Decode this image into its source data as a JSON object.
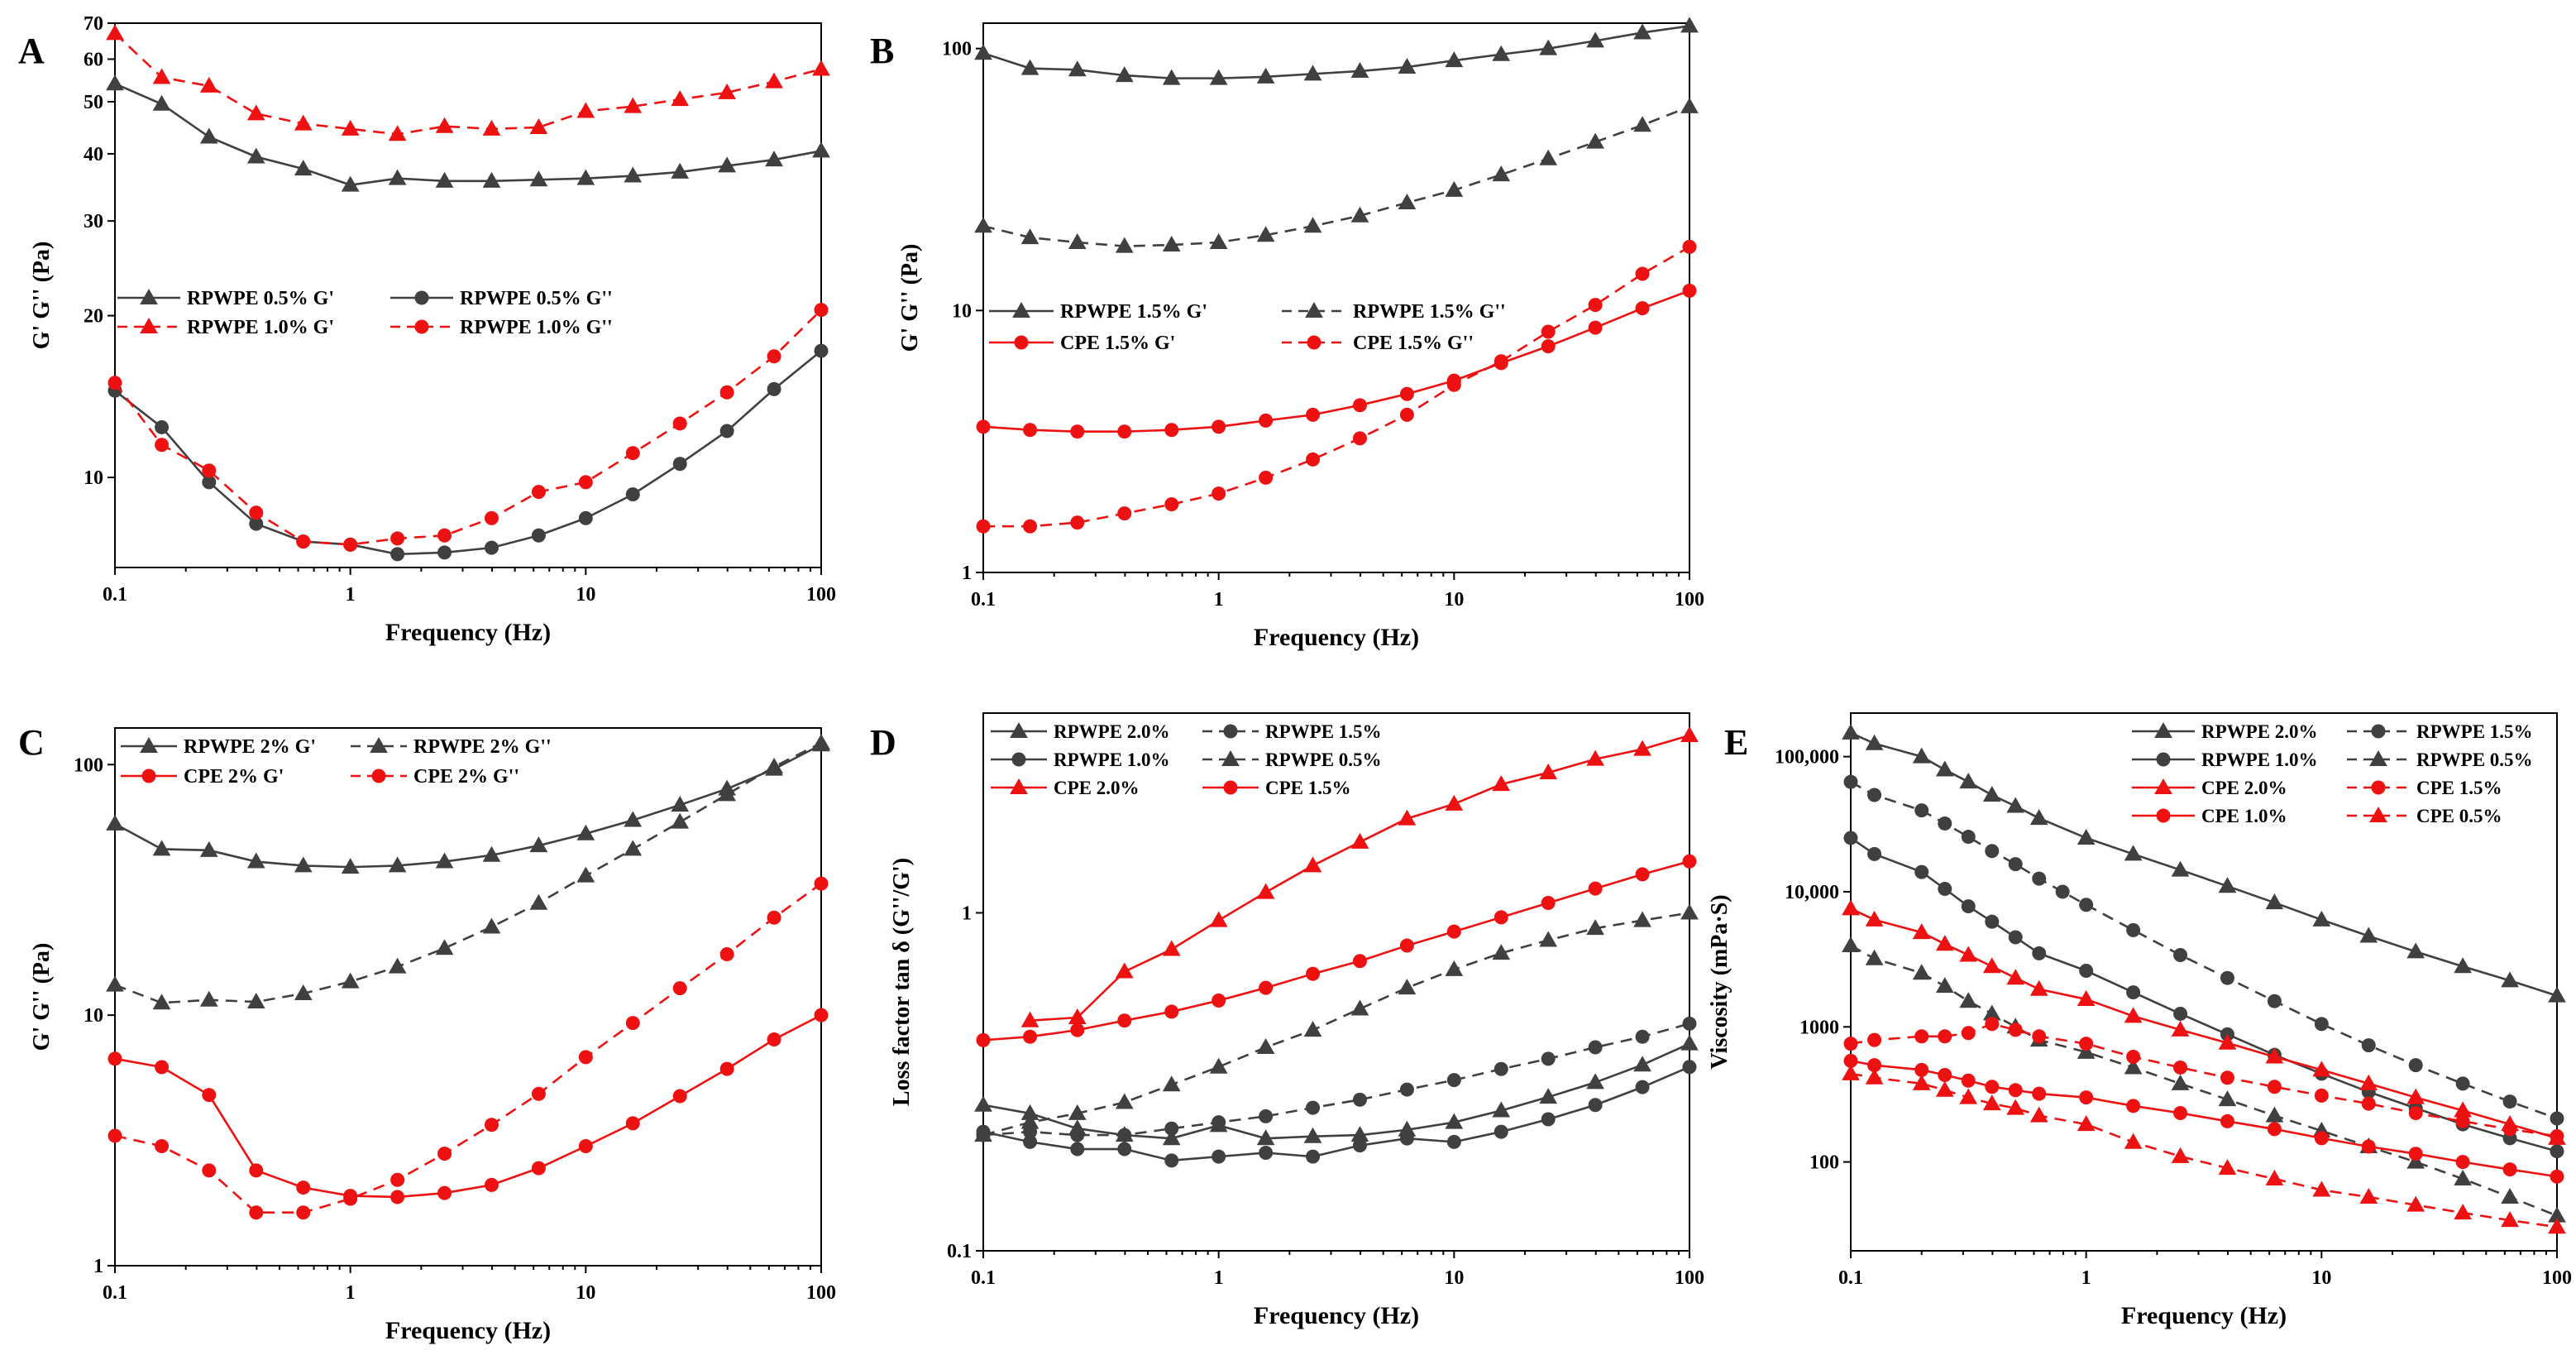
{
  "colors": {
    "dark": "#404040",
    "red": "#ee1111",
    "axis": "#000000"
  },
  "chart_data": [
    {
      "type": "line",
      "panel": "A",
      "xlabel": "Frequency (Hz)",
      "ylabel": "G' G'' (Pa)",
      "xscale": "log",
      "yscale": "log",
      "xlim": [
        0.1,
        100
      ],
      "ylim": [
        6.8,
        70
      ],
      "xticks": [
        0.1,
        1,
        10,
        100
      ],
      "xtick_labels": [
        "0.1",
        "1",
        "10",
        "100"
      ],
      "yticks": [
        10,
        20,
        30,
        40,
        50,
        60,
        70
      ],
      "ytick_labels": [
        "10",
        "20",
        "30",
        "40",
        "50",
        "60",
        "70"
      ],
      "legend_position": "center-left",
      "legend_columns": 2,
      "x": [
        0.1,
        0.158,
        0.251,
        0.398,
        0.631,
        1,
        1.585,
        2.512,
        3.981,
        6.31,
        10,
        15.85,
        25.12,
        39.81,
        63.1,
        100
      ],
      "series": [
        {
          "name": "RPWPE 0.5% G'",
          "color": "dark",
          "marker": "triangle",
          "dashed": false,
          "values": [
            54,
            49.5,
            43,
            39.5,
            37.5,
            35,
            36,
            35.6,
            35.6,
            35.8,
            36,
            36.4,
            37,
            38,
            39,
            40.5
          ]
        },
        {
          "name": "RPWPE 0.5% G''",
          "color": "dark",
          "marker": "circle",
          "dashed": false,
          "values": [
            14.5,
            12.4,
            9.8,
            8.2,
            7.6,
            7.5,
            7.2,
            7.25,
            7.4,
            7.8,
            8.4,
            9.3,
            10.6,
            12.2,
            14.6,
            17.2
          ]
        },
        {
          "name": "RPWPE 1.0% G'",
          "color": "red",
          "marker": "triangle",
          "dashed": true,
          "values": [
            67,
            55.5,
            53.5,
            47.5,
            45.5,
            44.5,
            43.5,
            45,
            44.5,
            44.8,
            48,
            49,
            50.5,
            52,
            54.5,
            57.5
          ]
        },
        {
          "name": "RPWPE 1.0% G''",
          "color": "red",
          "marker": "circle",
          "dashed": true,
          "values": [
            15,
            11.5,
            10.3,
            8.6,
            7.6,
            7.5,
            7.7,
            7.8,
            8.4,
            9.4,
            9.8,
            11.1,
            12.6,
            14.4,
            16.8,
            20.5
          ]
        }
      ]
    },
    {
      "type": "line",
      "panel": "B",
      "xlabel": "Frequency (Hz)",
      "ylabel": "G' G'' (Pa)",
      "xscale": "log",
      "yscale": "log",
      "xlim": [
        0.1,
        100
      ],
      "ylim": [
        1,
        125
      ],
      "xticks": [
        0.1,
        1,
        10,
        100
      ],
      "xtick_labels": [
        "0.1",
        "1",
        "10",
        "100"
      ],
      "yticks": [
        1,
        10,
        100
      ],
      "ytick_labels": [
        "1",
        "10",
        "100"
      ],
      "legend_position": "center-left",
      "legend_columns": 2,
      "x": [
        0.1,
        0.158,
        0.251,
        0.398,
        0.631,
        1,
        1.585,
        2.512,
        3.981,
        6.31,
        10,
        15.85,
        25.12,
        39.81,
        63.1,
        100
      ],
      "series": [
        {
          "name": "RPWPE 1.5% G'",
          "color": "dark",
          "marker": "triangle",
          "dashed": false,
          "values": [
            96,
            84,
            83,
            79,
            77,
            77,
            78,
            80,
            82,
            85,
            90,
            95,
            100,
            107,
            115,
            122
          ]
        },
        {
          "name": "RPWPE 1.5% G''",
          "color": "dark",
          "marker": "triangle",
          "dashed": true,
          "values": [
            21,
            19,
            18.2,
            17.6,
            17.8,
            18.2,
            19.4,
            21,
            23,
            25.8,
            28.8,
            33,
            38,
            44,
            51,
            60
          ]
        },
        {
          "name": "CPE 1.5% G'",
          "color": "red",
          "marker": "circle",
          "dashed": false,
          "values": [
            3.6,
            3.5,
            3.45,
            3.45,
            3.5,
            3.6,
            3.8,
            4.0,
            4.35,
            4.8,
            5.4,
            6.3,
            7.3,
            8.6,
            10.2,
            11.9
          ]
        },
        {
          "name": "CPE 1.5% G''",
          "color": "red",
          "marker": "circle",
          "dashed": true,
          "values": [
            1.5,
            1.5,
            1.55,
            1.68,
            1.82,
            2.0,
            2.3,
            2.7,
            3.25,
            4.0,
            5.2,
            6.4,
            8.3,
            10.5,
            13.8,
            17.5
          ]
        }
      ]
    },
    {
      "type": "line",
      "panel": "C",
      "xlabel": "Frequency (Hz)",
      "ylabel": "G' G'' (Pa)",
      "xscale": "log",
      "yscale": "log",
      "xlim": [
        0.1,
        100
      ],
      "ylim": [
        1,
        140
      ],
      "xticks": [
        0.1,
        1,
        10,
        100
      ],
      "xtick_labels": [
        "0.1",
        "1",
        "10",
        "100"
      ],
      "yticks": [
        1,
        10,
        100
      ],
      "ytick_labels": [
        "1",
        "10",
        "100"
      ],
      "legend_position": "top",
      "legend_columns": 2,
      "x": [
        0.1,
        0.158,
        0.251,
        0.398,
        0.631,
        1,
        1.585,
        2.512,
        3.981,
        6.31,
        10,
        15.85,
        25.12,
        39.81,
        63.1,
        100
      ],
      "series": [
        {
          "name": "RPWPE 2% G'",
          "color": "dark",
          "marker": "triangle",
          "dashed": false,
          "values": [
            58,
            46,
            45.5,
            41,
            39.5,
            39,
            39.5,
            41,
            43.5,
            47.5,
            53,
            60,
            69,
            80,
            96,
            120
          ]
        },
        {
          "name": "RPWPE 2% G''",
          "color": "dark",
          "marker": "triangle",
          "dashed": true,
          "values": [
            13.2,
            11.2,
            11.5,
            11.3,
            12.2,
            13.6,
            15.6,
            18.5,
            22.5,
            28,
            36,
            46,
            59,
            76,
            98,
            122
          ]
        },
        {
          "name": "CPE 2% G'",
          "color": "red",
          "marker": "circle",
          "dashed": false,
          "values": [
            6.7,
            6.2,
            4.8,
            2.4,
            2.05,
            1.9,
            1.88,
            1.95,
            2.1,
            2.45,
            3.0,
            3.7,
            4.75,
            6.1,
            8.0,
            10.0
          ]
        },
        {
          "name": "CPE 2% G''",
          "color": "red",
          "marker": "circle",
          "dashed": true,
          "values": [
            3.3,
            3.0,
            2.4,
            1.63,
            1.63,
            1.85,
            2.2,
            2.8,
            3.65,
            4.85,
            6.8,
            9.3,
            12.8,
            17.5,
            24.5,
            33.5
          ]
        }
      ]
    },
    {
      "type": "line",
      "panel": "D",
      "xlabel": "Frequency (Hz)",
      "ylabel": "Loss factor tan δ (G''/G')",
      "xscale": "log",
      "yscale": "log",
      "xlim": [
        0.1,
        100
      ],
      "ylim": [
        0.1,
        3.9
      ],
      "xticks": [
        0.1,
        1,
        10,
        100
      ],
      "xtick_labels": [
        "0.1",
        "1",
        "10",
        "100"
      ],
      "yticks": [
        0.1,
        1
      ],
      "ytick_labels": [
        "0.1",
        "1"
      ],
      "legend_position": "top-left",
      "legend_columns": 2,
      "x": [
        0.1,
        0.158,
        0.251,
        0.398,
        0.631,
        1,
        1.585,
        2.512,
        3.981,
        6.31,
        10,
        15.85,
        25.12,
        39.81,
        63.1,
        100
      ],
      "series": [
        {
          "name": "RPWPE 2.0%",
          "color": "dark",
          "marker": "triangle",
          "dashed": false,
          "values": [
            0.27,
            0.255,
            0.23,
            0.22,
            0.215,
            0.235,
            0.215,
            0.218,
            0.22,
            0.228,
            0.24,
            0.26,
            0.285,
            0.315,
            0.355,
            0.41
          ]
        },
        {
          "name": "RPWPE 1.5%",
          "color": "dark",
          "marker": "circle",
          "dashed": true,
          "values": [
            0.22,
            0.225,
            0.22,
            0.22,
            0.23,
            0.24,
            0.25,
            0.265,
            0.28,
            0.3,
            0.32,
            0.345,
            0.37,
            0.4,
            0.43,
            0.47
          ]
        },
        {
          "name": "RPWPE 1.0%",
          "color": "dark",
          "marker": "circle",
          "dashed": false,
          "values": [
            0.225,
            0.21,
            0.2,
            0.2,
            0.185,
            0.19,
            0.195,
            0.19,
            0.205,
            0.215,
            0.21,
            0.225,
            0.245,
            0.27,
            0.305,
            0.35
          ]
        },
        {
          "name": "RPWPE 0.5%",
          "color": "dark",
          "marker": "triangle",
          "dashed": true,
          "values": [
            0.22,
            0.24,
            0.255,
            0.275,
            0.31,
            0.35,
            0.4,
            0.45,
            0.52,
            0.6,
            0.68,
            0.76,
            0.83,
            0.9,
            0.95,
            1.0
          ]
        },
        {
          "name": "CPE 2.0%",
          "color": "red",
          "marker": "triangle",
          "dashed": false,
          "values": [
            null,
            0.48,
            0.49,
            0.67,
            0.78,
            0.95,
            1.15,
            1.38,
            1.62,
            1.9,
            2.1,
            2.4,
            2.6,
            2.85,
            3.05,
            3.35
          ]
        },
        {
          "name": "CPE 1.5%",
          "color": "red",
          "marker": "circle",
          "dashed": false,
          "values": [
            0.42,
            0.43,
            0.45,
            0.48,
            0.51,
            0.55,
            0.6,
            0.66,
            0.72,
            0.8,
            0.88,
            0.97,
            1.07,
            1.18,
            1.3,
            1.42
          ]
        }
      ]
    },
    {
      "type": "line",
      "panel": "E",
      "xlabel": "Frequency (Hz)",
      "ylabel": "Viscosity (mPa·S)",
      "xscale": "log",
      "yscale": "log",
      "xlim": [
        0.1,
        100
      ],
      "ylim": [
        22,
        210000
      ],
      "xticks": [
        0.1,
        1,
        10,
        100
      ],
      "xtick_labels": [
        "0.1",
        "1",
        "10",
        "100"
      ],
      "yticks": [
        100,
        1000,
        10000,
        100000
      ],
      "ytick_labels": [
        "100",
        "1000",
        "10,000",
        "100,000"
      ],
      "legend_position": "top-right",
      "legend_columns": 2,
      "x": [
        0.1,
        0.126,
        0.158,
        0.2,
        0.251,
        0.316,
        0.398,
        0.501,
        0.631,
        0.794,
        1,
        1.585,
        2.512,
        3.981,
        6.31,
        10,
        15.85,
        25.12,
        39.81,
        63.1,
        100
      ],
      "series": [
        {
          "name": "RPWPE 2.0%",
          "color": "dark",
          "marker": "triangle",
          "dashed": false,
          "values": [
            150000,
            125000,
            null,
            100000,
            80000,
            65000,
            52000,
            43000,
            35000,
            null,
            25000,
            19000,
            14500,
            11000,
            8300,
            6200,
            4700,
            3600,
            2800,
            2200,
            1700
          ]
        },
        {
          "name": "RPWPE 1.5%",
          "color": "dark",
          "marker": "circle",
          "dashed": true,
          "values": [
            65000,
            52000,
            null,
            40000,
            32000,
            25500,
            20000,
            16000,
            12500,
            10000,
            8000,
            5200,
            3400,
            2300,
            1550,
            1050,
            730,
            520,
            380,
            280,
            210
          ]
        },
        {
          "name": "RPWPE 1.0%",
          "color": "dark",
          "marker": "circle",
          "dashed": false,
          "values": [
            25000,
            19000,
            null,
            14000,
            10500,
            7800,
            6000,
            4600,
            3500,
            null,
            2600,
            1800,
            1250,
            880,
            620,
            450,
            330,
            250,
            190,
            150,
            120
          ]
        },
        {
          "name": "RPWPE 0.5%",
          "color": "dark",
          "marker": "triangle",
          "dashed": true,
          "values": [
            4000,
            3200,
            null,
            2500,
            2000,
            1550,
            1250,
            1000,
            800,
            null,
            650,
            500,
            380,
            290,
            220,
            170,
            130,
            100,
            75,
            55,
            40
          ]
        },
        {
          "name": "CPE 2.0%",
          "color": "red",
          "marker": "triangle",
          "dashed": false,
          "values": [
            7500,
            6200,
            null,
            5000,
            4100,
            3400,
            2800,
            2300,
            1900,
            null,
            1600,
            1200,
            950,
            760,
            600,
            480,
            380,
            300,
            240,
            190,
            150
          ]
        },
        {
          "name": "CPE 1.5%",
          "color": "red",
          "marker": "circle",
          "dashed": true,
          "values": [
            750,
            800,
            null,
            850,
            850,
            900,
            1050,
            950,
            850,
            null,
            750,
            600,
            500,
            420,
            360,
            310,
            270,
            230,
            200,
            175,
            155
          ]
        },
        {
          "name": "CPE 1.0%",
          "color": "red",
          "marker": "circle",
          "dashed": false,
          "values": [
            560,
            520,
            null,
            480,
            440,
            400,
            360,
            340,
            320,
            null,
            300,
            260,
            230,
            200,
            175,
            150,
            130,
            115,
            100,
            88,
            78
          ]
        },
        {
          "name": "CPE 0.5%",
          "color": "red",
          "marker": "triangle",
          "dashed": true,
          "values": [
            450,
            420,
            null,
            380,
            340,
            300,
            270,
            250,
            220,
            null,
            190,
            140,
            110,
            90,
            75,
            62,
            55,
            48,
            42,
            37,
            33
          ]
        }
      ]
    }
  ]
}
